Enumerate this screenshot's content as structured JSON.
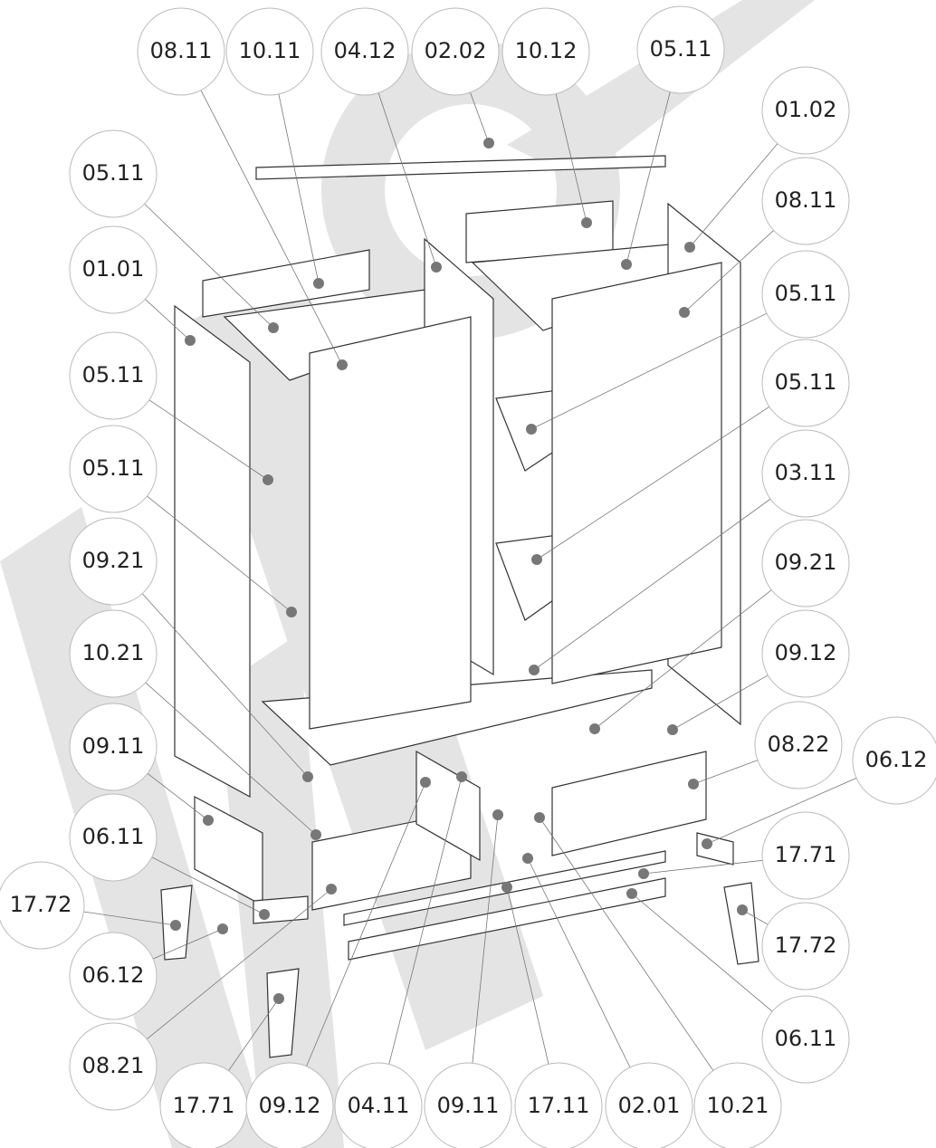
{
  "callouts": [
    {
      "label": "08.11"
    },
    {
      "label": "10.11"
    },
    {
      "label": "04.12"
    },
    {
      "label": "02.02"
    },
    {
      "label": "10.12"
    },
    {
      "label": "05.11"
    },
    {
      "label": "01.02"
    },
    {
      "label": "08.11"
    },
    {
      "label": "05.11"
    },
    {
      "label": "05.11"
    },
    {
      "label": "03.11"
    },
    {
      "label": "09.21"
    },
    {
      "label": "09.12"
    },
    {
      "label": "08.22"
    },
    {
      "label": "06.12"
    },
    {
      "label": "17.71"
    },
    {
      "label": "17.72"
    },
    {
      "label": "06.11"
    },
    {
      "label": "05.11"
    },
    {
      "label": "01.01"
    },
    {
      "label": "05.11"
    },
    {
      "label": "05.11"
    },
    {
      "label": "09.21"
    },
    {
      "label": "10.21"
    },
    {
      "label": "09.11"
    },
    {
      "label": "06.11"
    },
    {
      "label": "17.72"
    },
    {
      "label": "06.12"
    },
    {
      "label": "08.21"
    },
    {
      "label": "17.71"
    },
    {
      "label": "09.12"
    },
    {
      "label": "04.11"
    },
    {
      "label": "09.11"
    },
    {
      "label": "17.11"
    },
    {
      "label": "02.01"
    },
    {
      "label": "10.21"
    }
  ]
}
